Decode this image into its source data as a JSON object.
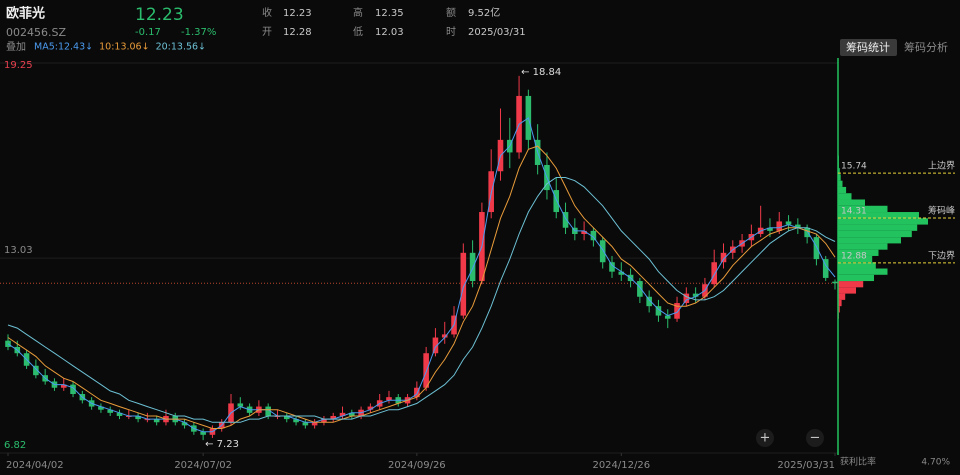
{
  "header": {
    "name": "欧菲光",
    "code": "002456.SZ",
    "price": "12.23",
    "change": "-0.17",
    "change_pct": "-1.37%",
    "quote": [
      {
        "label": "收",
        "value": "12.23"
      },
      {
        "label": "开",
        "value": "12.28"
      },
      {
        "label": "高",
        "value": "12.35"
      },
      {
        "label": "低",
        "value": "12.03"
      },
      {
        "label": "额",
        "value": "9.52亿"
      },
      {
        "label": "时",
        "value": "2025/03/31"
      }
    ],
    "overlay": "叠加",
    "tabs": [
      "筹码统计",
      "筹码分析"
    ],
    "zoom_in": "+",
    "zoom_out": "−"
  },
  "chart_data": {
    "type": "candlestick",
    "up_color": "#f03a4a",
    "down_color": "#2bbd6d",
    "ylim": [
      6.82,
      19.25
    ],
    "yticks": [
      19.25,
      13.03,
      6.82
    ],
    "ytick_colors": [
      "#e8404f",
      "#8a8a8a",
      "#2bbd6d"
    ],
    "xticks": [
      {
        "value": 0,
        "label": "2024/04/02"
      },
      {
        "value": 21,
        "label": "2024/07/02"
      },
      {
        "value": 44,
        "label": "2024/09/26"
      },
      {
        "value": 66,
        "label": "2024/12/26"
      },
      {
        "value": 89,
        "label": "2025/03/31"
      }
    ],
    "candles": [
      [
        10.4,
        10.6,
        10.1,
        10.2
      ],
      [
        10.2,
        10.4,
        9.9,
        10.0
      ],
      [
        10.0,
        10.1,
        9.5,
        9.6
      ],
      [
        9.6,
        9.8,
        9.2,
        9.3
      ],
      [
        9.3,
        9.5,
        9.0,
        9.1
      ],
      [
        9.1,
        9.2,
        8.8,
        8.9
      ],
      [
        8.9,
        9.2,
        8.8,
        9.0
      ],
      [
        9.0,
        9.1,
        8.6,
        8.7
      ],
      [
        8.7,
        8.8,
        8.4,
        8.5
      ],
      [
        8.5,
        8.6,
        8.2,
        8.3
      ],
      [
        8.3,
        8.4,
        8.1,
        8.2
      ],
      [
        8.2,
        8.3,
        8.0,
        8.1
      ],
      [
        8.1,
        8.2,
        7.9,
        8.0
      ],
      [
        8.0,
        8.2,
        7.9,
        8.0
      ],
      [
        8.0,
        8.1,
        7.8,
        7.9
      ],
      [
        7.9,
        8.1,
        7.8,
        7.9
      ],
      [
        7.9,
        8.0,
        7.7,
        7.8
      ],
      [
        7.8,
        8.2,
        7.7,
        8.0
      ],
      [
        8.0,
        8.1,
        7.7,
        7.8
      ],
      [
        7.8,
        7.9,
        7.6,
        7.7
      ],
      [
        7.7,
        7.8,
        7.4,
        7.5
      ],
      [
        7.5,
        7.6,
        7.23,
        7.4
      ],
      [
        7.4,
        7.7,
        7.3,
        7.6
      ],
      [
        7.6,
        7.9,
        7.5,
        7.8
      ],
      [
        7.8,
        8.7,
        7.7,
        8.4
      ],
      [
        8.4,
        8.6,
        8.2,
        8.3
      ],
      [
        8.3,
        8.4,
        8.0,
        8.1
      ],
      [
        8.1,
        8.5,
        8.0,
        8.3
      ],
      [
        8.3,
        8.4,
        7.9,
        8.0
      ],
      [
        8.0,
        8.2,
        7.9,
        8.0
      ],
      [
        8.0,
        8.1,
        7.8,
        7.9
      ],
      [
        7.9,
        8.0,
        7.7,
        7.8
      ],
      [
        7.8,
        7.9,
        7.6,
        7.7
      ],
      [
        7.7,
        7.9,
        7.6,
        7.8
      ],
      [
        7.8,
        8.0,
        7.7,
        7.9
      ],
      [
        7.9,
        8.1,
        7.8,
        8.0
      ],
      [
        8.0,
        8.3,
        7.9,
        8.1
      ],
      [
        8.1,
        8.2,
        7.9,
        8.0
      ],
      [
        8.0,
        8.3,
        7.9,
        8.2
      ],
      [
        8.2,
        8.4,
        8.1,
        8.3
      ],
      [
        8.3,
        8.7,
        8.2,
        8.5
      ],
      [
        8.5,
        8.8,
        8.4,
        8.6
      ],
      [
        8.6,
        8.7,
        8.3,
        8.4
      ],
      [
        8.4,
        8.7,
        8.3,
        8.6
      ],
      [
        8.6,
        9.1,
        8.5,
        8.9
      ],
      [
        8.9,
        10.2,
        8.8,
        10.0
      ],
      [
        10.0,
        10.8,
        9.9,
        10.5
      ],
      [
        10.5,
        11.0,
        10.3,
        10.6
      ],
      [
        10.6,
        11.5,
        10.5,
        11.2
      ],
      [
        11.2,
        13.5,
        11.1,
        13.2
      ],
      [
        13.2,
        13.6,
        12.1,
        12.3
      ],
      [
        12.3,
        14.8,
        12.2,
        14.5
      ],
      [
        14.5,
        16.5,
        14.3,
        15.8
      ],
      [
        15.8,
        17.8,
        15.5,
        16.8
      ],
      [
        16.8,
        17.5,
        15.9,
        16.4
      ],
      [
        16.4,
        18.84,
        16.2,
        18.2
      ],
      [
        18.2,
        18.4,
        16.5,
        16.8
      ],
      [
        16.8,
        17.3,
        15.7,
        16.0
      ],
      [
        16.0,
        16.4,
        14.9,
        15.2
      ],
      [
        15.2,
        15.6,
        14.3,
        14.5
      ],
      [
        14.5,
        14.8,
        13.8,
        14.0
      ],
      [
        14.0,
        14.3,
        13.6,
        13.8
      ],
      [
        13.8,
        14.2,
        13.6,
        13.9
      ],
      [
        13.9,
        14.0,
        13.4,
        13.6
      ],
      [
        13.6,
        13.7,
        12.7,
        12.9
      ],
      [
        12.9,
        13.1,
        12.4,
        12.6
      ],
      [
        12.6,
        12.9,
        12.3,
        12.5
      ],
      [
        12.5,
        12.7,
        12.1,
        12.3
      ],
      [
        12.3,
        12.4,
        11.6,
        11.8
      ],
      [
        11.8,
        12.0,
        11.3,
        11.5
      ],
      [
        11.5,
        11.7,
        11.0,
        11.2
      ],
      [
        11.2,
        11.4,
        10.8,
        11.1
      ],
      [
        11.1,
        11.8,
        11.0,
        11.6
      ],
      [
        11.6,
        12.1,
        11.5,
        11.9
      ],
      [
        11.9,
        12.1,
        11.6,
        11.8
      ],
      [
        11.8,
        12.4,
        11.7,
        12.2
      ],
      [
        12.2,
        13.3,
        12.1,
        12.9
      ],
      [
        12.9,
        13.5,
        12.7,
        13.2
      ],
      [
        13.2,
        13.6,
        13.0,
        13.4
      ],
      [
        13.4,
        13.8,
        13.2,
        13.6
      ],
      [
        13.6,
        14.1,
        13.4,
        13.8
      ],
      [
        13.8,
        14.7,
        13.7,
        14.0
      ],
      [
        14.0,
        14.3,
        13.7,
        13.9
      ],
      [
        13.9,
        14.5,
        13.8,
        14.2
      ],
      [
        14.2,
        14.4,
        13.9,
        14.1
      ],
      [
        14.1,
        14.3,
        13.8,
        14.0
      ],
      [
        14.0,
        14.1,
        13.5,
        13.7
      ],
      [
        13.7,
        13.8,
        12.8,
        13.0
      ],
      [
        13.0,
        13.1,
        12.3,
        12.4
      ],
      [
        12.28,
        12.35,
        12.03,
        12.23
      ]
    ],
    "series": [
      {
        "name": "MA5",
        "label": "MA5:12.43↓",
        "color": "#4b9bf0",
        "values": [
          10.3,
          10.1,
          9.8,
          9.5,
          9.2,
          9.0,
          9.0,
          8.9,
          8.6,
          8.4,
          8.3,
          8.2,
          8.1,
          8.0,
          8.0,
          7.9,
          7.9,
          7.9,
          7.9,
          7.8,
          7.6,
          7.5,
          7.5,
          7.7,
          8.1,
          8.3,
          8.2,
          8.2,
          8.2,
          8.0,
          8.0,
          7.9,
          7.8,
          7.8,
          7.9,
          7.9,
          8.0,
          8.1,
          8.1,
          8.2,
          8.4,
          8.5,
          8.5,
          8.5,
          8.7,
          9.4,
          10.2,
          10.5,
          10.9,
          12.1,
          12.7,
          13.4,
          15.1,
          16.3,
          16.6,
          17.3,
          17.5,
          16.4,
          15.6,
          14.9,
          14.3,
          13.9,
          13.9,
          13.7,
          13.3,
          12.8,
          12.6,
          12.4,
          12.1,
          11.7,
          11.4,
          11.2,
          11.3,
          11.7,
          11.8,
          12.0,
          12.5,
          13.0,
          13.3,
          13.5,
          13.7,
          13.9,
          14.0,
          14.0,
          14.1,
          14.0,
          13.9,
          13.4,
          12.8,
          12.43
        ]
      },
      {
        "name": "10",
        "label": "10:13.06↓",
        "color": "#e89b3a",
        "values": [
          10.5,
          10.3,
          10.1,
          9.9,
          9.6,
          9.4,
          9.2,
          9.1,
          8.9,
          8.7,
          8.5,
          8.4,
          8.3,
          8.2,
          8.1,
          8.0,
          8.0,
          7.9,
          7.9,
          7.9,
          7.8,
          7.7,
          7.6,
          7.6,
          7.7,
          7.9,
          8.0,
          8.2,
          8.2,
          8.2,
          8.1,
          8.0,
          7.9,
          7.8,
          7.8,
          7.8,
          7.9,
          8.0,
          8.0,
          8.1,
          8.2,
          8.3,
          8.4,
          8.5,
          8.6,
          8.9,
          9.4,
          9.8,
          10.3,
          11.0,
          11.5,
          12.3,
          13.3,
          14.3,
          15.0,
          15.9,
          16.5,
          16.6,
          16.3,
          15.9,
          15.3,
          14.7,
          14.3,
          14.0,
          13.7,
          13.4,
          13.0,
          12.8,
          12.5,
          12.2,
          11.9,
          11.6,
          11.5,
          11.5,
          11.6,
          11.8,
          12.1,
          12.4,
          12.8,
          13.1,
          13.4,
          13.6,
          13.8,
          13.9,
          14.0,
          14.0,
          13.9,
          13.8,
          13.5,
          13.06
        ]
      },
      {
        "name": "20",
        "label": "20:13.56↓",
        "color": "#6cc0d4",
        "values": [
          10.9,
          10.8,
          10.6,
          10.4,
          10.2,
          10.0,
          9.8,
          9.6,
          9.4,
          9.2,
          9.0,
          8.8,
          8.7,
          8.5,
          8.4,
          8.3,
          8.2,
          8.1,
          8.0,
          8.0,
          7.9,
          7.9,
          7.8,
          7.8,
          7.8,
          7.8,
          7.9,
          7.9,
          8.0,
          8.0,
          8.0,
          8.0,
          8.0,
          8.0,
          7.9,
          7.9,
          7.9,
          7.9,
          8.0,
          8.0,
          8.1,
          8.2,
          8.2,
          8.3,
          8.4,
          8.6,
          8.8,
          9.0,
          9.3,
          9.8,
          10.2,
          10.8,
          11.5,
          12.3,
          13.0,
          13.8,
          14.5,
          15.0,
          15.4,
          15.6,
          15.6,
          15.5,
          15.3,
          15.0,
          14.7,
          14.3,
          13.9,
          13.6,
          13.3,
          13.0,
          12.6,
          12.3,
          12.0,
          11.8,
          11.7,
          11.7,
          11.8,
          12.0,
          12.3,
          12.6,
          12.9,
          13.2,
          13.5,
          13.7,
          13.9,
          14.0,
          14.0,
          13.9,
          13.7,
          13.56
        ]
      }
    ],
    "annotations": [
      {
        "index": 55,
        "value": 18.84,
        "label": "← 18.84"
      },
      {
        "index": 21,
        "value": 7.23,
        "label": "← 7.23"
      }
    ],
    "chip_distribution": {
      "above_color": "#22c35e",
      "below_color": "#f03a4a",
      "line_color": "#22c35e",
      "prices": [
        11.2,
        11.4,
        11.6,
        11.8,
        12.0,
        12.2,
        12.4,
        12.6,
        12.8,
        13.0,
        13.2,
        13.4,
        13.6,
        13.8,
        14.0,
        14.2,
        14.4,
        14.6,
        14.8,
        15.0,
        15.2,
        15.4,
        15.6,
        15.8,
        16.0,
        16.2
      ],
      "values": [
        1,
        2,
        4,
        8,
        20,
        28,
        40,
        55,
        42,
        38,
        45,
        55,
        70,
        82,
        88,
        100,
        90,
        55,
        30,
        15,
        9,
        5,
        3,
        2,
        1,
        1
      ],
      "levels": [
        {
          "value": 15.74,
          "label": "上边界"
        },
        {
          "value": 14.31,
          "label": "筹码峰"
        },
        {
          "value": 12.88,
          "label": "下边界"
        }
      ],
      "level_color": "#e8d23a"
    },
    "profit_ratio": {
      "label": "获利比率",
      "value": "4.70%"
    }
  }
}
